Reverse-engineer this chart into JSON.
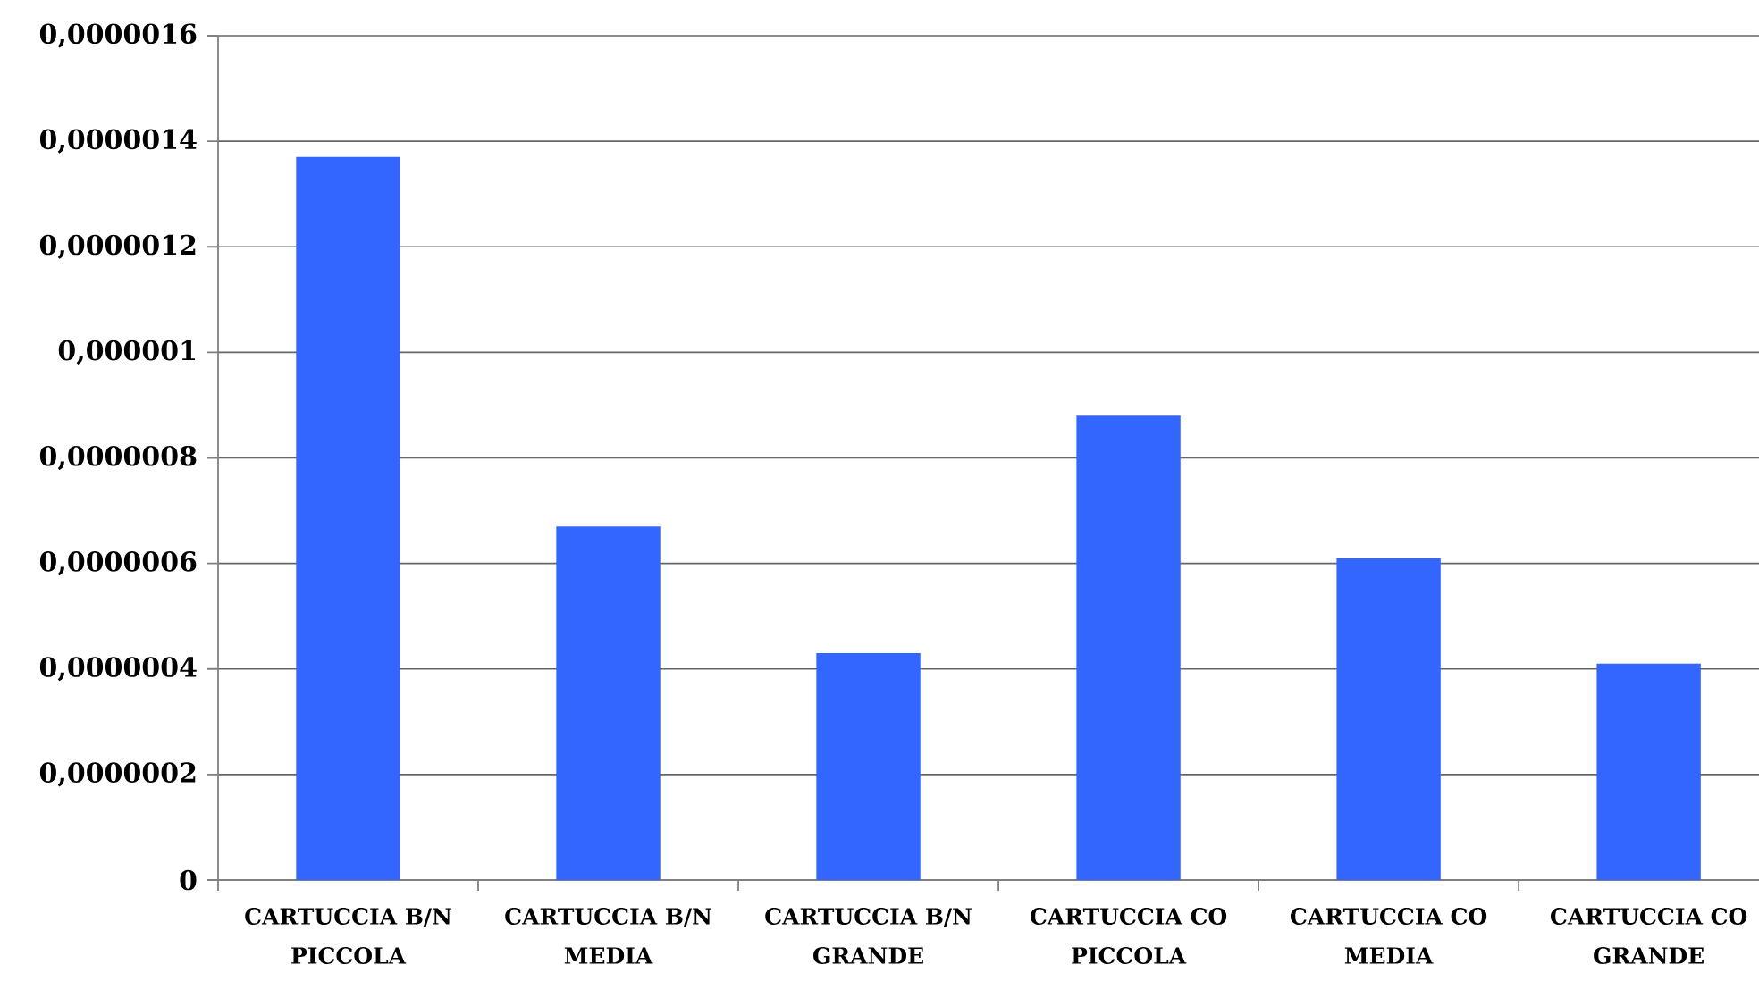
{
  "chart_data": {
    "type": "bar",
    "categories": [
      "CARTUCCIA B/N PICCOLA",
      "CARTUCCIA B/N MEDIA",
      "CARTUCCIA B/N GRANDE",
      "CARTUCCIA CO PICCOLA",
      "CARTUCCIA CO MEDIA",
      "CARTUCCIA CO GRANDE"
    ],
    "values": [
      1.37e-06,
      6.7e-07,
      4.3e-07,
      8.8e-07,
      6.1e-07,
      4.1e-07
    ],
    "color": "#3366ff",
    "ylim": [
      0,
      1.6e-06
    ],
    "yticks": [
      0,
      {
        "value": 2e-07,
        "label": "0,0000002"
      },
      {
        "value": 4e-07,
        "label": "0,0000004"
      },
      {
        "value": 6e-07,
        "label": "0,0000006"
      },
      {
        "value": 8e-07,
        "label": "0,0000008"
      },
      {
        "value": 1e-06,
        "label": "0,000001"
      },
      {
        "value": 1.2e-06,
        "label": "0,0000012"
      },
      {
        "value": 1.4e-06,
        "label": "0,0000014"
      },
      {
        "value": 1.6e-06,
        "label": "0,0000016"
      }
    ],
    "grid": "y"
  }
}
